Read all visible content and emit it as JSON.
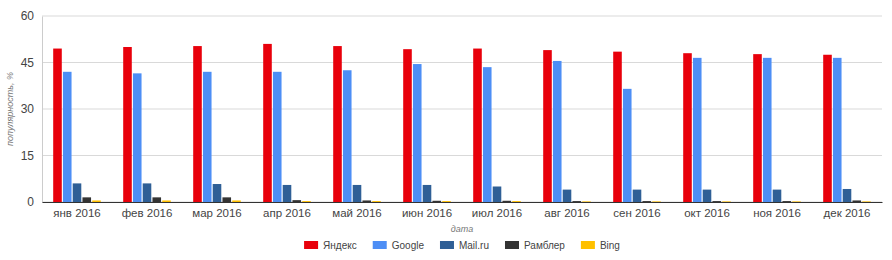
{
  "chart_data": {
    "type": "bar",
    "x_label": "дата",
    "y_label": "популярность, %",
    "categories": [
      "янв 2016",
      "фев 2016",
      "мар 2016",
      "апр 2016",
      "май 2016",
      "июн 2016",
      "июл 2016",
      "авг 2016",
      "сен 2016",
      "окт 2016",
      "ноя 2016",
      "дек 2016"
    ],
    "series": [
      {
        "name": "Яндекс",
        "color": "#e8000b",
        "values": [
          49.5,
          50,
          50.3,
          51,
          50.3,
          49.3,
          49.5,
          49,
          48.5,
          48,
          47.7,
          47.5
        ]
      },
      {
        "name": "Google",
        "color": "#4d8ef5",
        "values": [
          42,
          41.5,
          42,
          42,
          42.5,
          44.5,
          43.5,
          45.5,
          36.5,
          46.5,
          46.5,
          46.5
        ]
      },
      {
        "name": "Mail.ru",
        "color": "#2f5f96",
        "values": [
          6,
          6,
          5.8,
          5.5,
          5.5,
          5.5,
          5,
          4,
          4,
          4,
          4,
          4.2
        ]
      },
      {
        "name": "Рамблер",
        "color": "#333333",
        "values": [
          1.5,
          1.5,
          1.5,
          0.6,
          0.5,
          0.4,
          0.4,
          0.3,
          0.3,
          0.3,
          0.3,
          0.5
        ]
      },
      {
        "name": "Bing",
        "color": "#ffc000",
        "values": [
          0.5,
          0.5,
          0.5,
          0.3,
          0.3,
          0.3,
          0.3,
          0.2,
          0.2,
          0.2,
          0.2,
          0.2
        ]
      }
    ],
    "ylim": [
      0,
      60
    ],
    "yticks": [
      0,
      15,
      30,
      45,
      60
    ],
    "grid": true,
    "legend": "bottom"
  }
}
